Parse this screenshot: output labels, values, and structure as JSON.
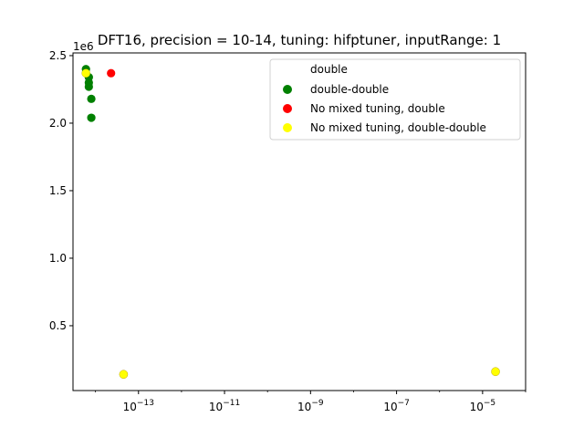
{
  "chart_data": {
    "type": "scatter",
    "title": "DFT16, precision = 10-14, tuning: hifptuner, inputRange: 1",
    "xlabel": "",
    "ylabel": "",
    "x_scale": "log",
    "xlim": [
      3e-15,
      0.0001
    ],
    "ylim": [
      20000,
      2520000
    ],
    "y_offset_label": "1e6",
    "x_ticks": [
      {
        "value": 1e-13,
        "label": "10",
        "exp": "−13"
      },
      {
        "value": 1e-11,
        "label": "10",
        "exp": "−11"
      },
      {
        "value": 1e-09,
        "label": "10",
        "exp": "−9"
      },
      {
        "value": 1e-07,
        "label": "10",
        "exp": "−7"
      },
      {
        "value": 1e-05,
        "label": "10",
        "exp": "−5"
      }
    ],
    "y_ticks": [
      {
        "value": 500000,
        "label": "0.5"
      },
      {
        "value": 1000000,
        "label": "1.0"
      },
      {
        "value": 1500000,
        "label": "1.5"
      },
      {
        "value": 2000000,
        "label": "2.0"
      },
      {
        "value": 2500000,
        "label": "2.5"
      }
    ],
    "grid": false,
    "legend_placement": "top-right",
    "legend_title": "double",
    "series": [
      {
        "name": "double-double",
        "color": "#008000",
        "points": [
          {
            "x": 6e-15,
            "y": 2400000
          },
          {
            "x": 7e-15,
            "y": 2340000
          },
          {
            "x": 7e-15,
            "y": 2300000
          },
          {
            "x": 7e-15,
            "y": 2270000
          },
          {
            "x": 8e-15,
            "y": 2180000
          },
          {
            "x": 8e-15,
            "y": 2040000
          }
        ]
      },
      {
        "name": "No mixed tuning, double",
        "color": "#ff0000",
        "points": [
          {
            "x": 2.3e-14,
            "y": 2370000
          },
          {
            "x": 4.5e-14,
            "y": 140000
          },
          {
            "x": 2e-05,
            "y": 160000
          }
        ]
      },
      {
        "name": "No mixed tuning, double-double",
        "color": "#ffff00",
        "points": [
          {
            "x": 6e-15,
            "y": 2370000
          },
          {
            "x": 4.5e-14,
            "y": 140000
          },
          {
            "x": 2e-05,
            "y": 160000
          }
        ]
      }
    ]
  }
}
